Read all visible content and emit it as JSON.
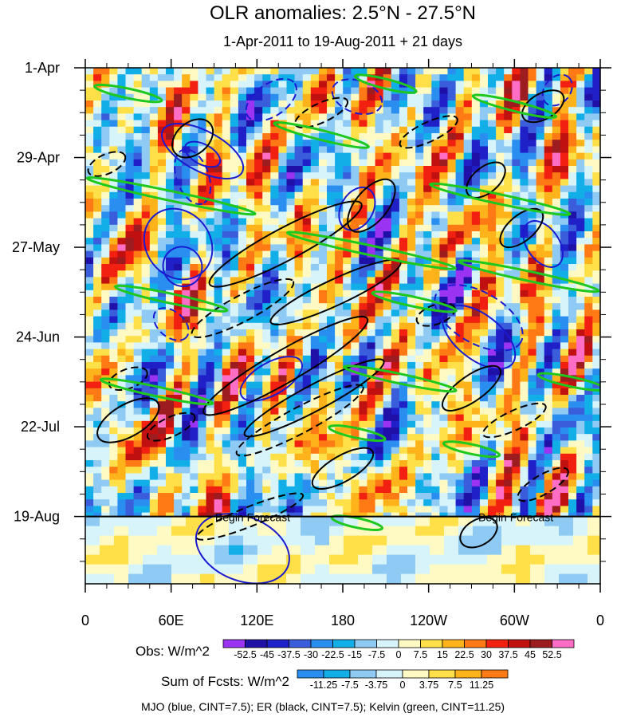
{
  "chart_data": {
    "type": "heatmap",
    "title": "OLR anomalies: 2.5°N - 27.5°N",
    "subtitle": "1-Apr-2011 to 19-Aug-2011 + 21 days",
    "x_ticks": [
      "0",
      "60E",
      "120E",
      "180",
      "120W",
      "60W",
      "0"
    ],
    "x_tick_values": [
      0,
      60,
      120,
      180,
      240,
      300,
      360
    ],
    "xlim": [
      0,
      360
    ],
    "y_ticks": [
      "1-Apr",
      "29-Apr",
      "27-May",
      "24-Jun",
      "22-Jul",
      "19-Aug"
    ],
    "y_tick_days": [
      0,
      28,
      56,
      84,
      112,
      140
    ],
    "ylim_days": [
      0,
      161
    ],
    "forecast_start_day": 140,
    "forecast_label": "Begin Forecast",
    "obs_colorbar": {
      "label": "Obs: W/m^2",
      "levels": [
        "-52.5",
        "-45",
        "-37.5",
        "-30",
        "-22.5",
        "-15",
        "-7.5",
        "0",
        "7.5",
        "15",
        "22.5",
        "30",
        "37.5",
        "45",
        "52.5"
      ],
      "colors": [
        "#9a34f2",
        "#1f10a8",
        "#2020c8",
        "#3a5ddc",
        "#2a8ef0",
        "#12aee8",
        "#8ecaf4",
        "#d8f4fb",
        "#fffac4",
        "#ffe048",
        "#ffb31a",
        "#ff7a14",
        "#f22010",
        "#c01010",
        "#9c1c20",
        "#ff6ec4"
      ]
    },
    "fcst_colorbar": {
      "label": "Sum of Fcsts: W/m^2",
      "levels": [
        "-11.25",
        "-7.5",
        "-3.75",
        "0",
        "3.75",
        "7.5",
        "11.25"
      ],
      "colors": [
        "#2a8ef0",
        "#12aee8",
        "#8ecaf4",
        "#d8f4fb",
        "#fffac4",
        "#ffe048",
        "#ffb31a",
        "#ff7a14"
      ]
    },
    "footnote": "MJO (blue, CINT=7.5); ER (black, CINT=7.5); Kelvin (green, CINT=11.25)",
    "contour_colors": {
      "mjo": "#1a1ad0",
      "er": "#000000",
      "kelvin": "#1ec81e"
    },
    "contours": {
      "mjo": [
        {
          "lon": 82,
          "day": 26,
          "rlon": 14,
          "rday": 14,
          "angle": -62,
          "dashed": false
        },
        {
          "lon": 82,
          "day": 27,
          "rlon": 7,
          "rday": 6,
          "angle": -62,
          "dashed": false
        },
        {
          "lon": 65,
          "day": 55,
          "rlon": 26,
          "rday": 10,
          "angle": 52,
          "dashed": false
        },
        {
          "lon": 68,
          "day": 62,
          "rlon": 14,
          "rday": 6,
          "angle": 56,
          "dashed": false
        },
        {
          "lon": 190,
          "day": 44,
          "rlon": 16,
          "rday": 5,
          "angle": -60,
          "dashed": false
        },
        {
          "lon": 275,
          "day": 84,
          "rlon": 30,
          "rday": 7,
          "angle": 38,
          "dashed": false
        },
        {
          "lon": 320,
          "day": 55,
          "rlon": 18,
          "rday": 5,
          "angle": 55,
          "dashed": false
        },
        {
          "lon": 130,
          "day": 97,
          "rlon": 24,
          "rday": 5,
          "angle": -30,
          "dashed": false
        },
        {
          "lon": 110,
          "day": 150,
          "rlon": 34,
          "rday": 10,
          "angle": 22,
          "dashed": false
        },
        {
          "lon": 75,
          "day": 34,
          "rlon": 20,
          "rday": 5,
          "angle": 70,
          "dashed": true
        },
        {
          "lon": 130,
          "day": 10,
          "rlon": 20,
          "rday": 5,
          "angle": -35,
          "dashed": true
        },
        {
          "lon": 275,
          "day": 78,
          "rlon": 34,
          "rday": 8,
          "angle": 30,
          "dashed": true
        },
        {
          "lon": 60,
          "day": 80,
          "rlon": 14,
          "rday": 4,
          "angle": 40,
          "dashed": true
        },
        {
          "lon": 190,
          "day": 9,
          "rlon": 18,
          "rday": 5,
          "angle": 20,
          "dashed": true
        },
        {
          "lon": 330,
          "day": 7,
          "rlon": 12,
          "rday": 4,
          "angle": -50,
          "dashed": true
        }
      ],
      "er": [
        {
          "lon": 75,
          "day": 22,
          "rlon": 16,
          "rday": 5,
          "angle": -40,
          "dashed": false
        },
        {
          "lon": 140,
          "day": 55,
          "rlon": 60,
          "rday": 5,
          "angle": -28,
          "dashed": false
        },
        {
          "lon": 175,
          "day": 70,
          "rlon": 50,
          "rday": 4,
          "angle": -25,
          "dashed": false
        },
        {
          "lon": 140,
          "day": 93,
          "rlon": 66,
          "rday": 5,
          "angle": -30,
          "dashed": false
        },
        {
          "lon": 160,
          "day": 103,
          "rlon": 55,
          "rday": 4,
          "angle": -28,
          "dashed": false
        },
        {
          "lon": 200,
          "day": 43,
          "rlon": 22,
          "rday": 5,
          "angle": -50,
          "dashed": false
        },
        {
          "lon": 270,
          "day": 100,
          "rlon": 24,
          "rday": 4,
          "angle": -35,
          "dashed": false
        },
        {
          "lon": 280,
          "day": 35,
          "rlon": 16,
          "rday": 4,
          "angle": -40,
          "dashed": false
        },
        {
          "lon": 320,
          "day": 12,
          "rlon": 16,
          "rday": 4,
          "angle": -30,
          "dashed": false
        },
        {
          "lon": 305,
          "day": 50,
          "rlon": 18,
          "rday": 4,
          "angle": -40,
          "dashed": false
        },
        {
          "lon": 30,
          "day": 110,
          "rlon": 24,
          "rday": 5,
          "angle": -30,
          "dashed": false
        },
        {
          "lon": 180,
          "day": 125,
          "rlon": 24,
          "rday": 4,
          "angle": -30,
          "dashed": false
        },
        {
          "lon": 275,
          "day": 145,
          "rlon": 14,
          "rday": 4,
          "angle": -30,
          "dashed": false
        },
        {
          "lon": 15,
          "day": 30,
          "rlon": 14,
          "rday": 3,
          "angle": -25,
          "dashed": true
        },
        {
          "lon": 110,
          "day": 75,
          "rlon": 40,
          "rday": 4,
          "angle": -28,
          "dashed": true
        },
        {
          "lon": 150,
          "day": 110,
          "rlon": 50,
          "rday": 4,
          "angle": -28,
          "dashed": true
        },
        {
          "lon": 240,
          "day": 20,
          "rlon": 22,
          "rday": 3,
          "angle": -25,
          "dashed": true
        },
        {
          "lon": 300,
          "day": 110,
          "rlon": 24,
          "rday": 3,
          "angle": -25,
          "dashed": true
        },
        {
          "lon": 60,
          "day": 112,
          "rlon": 18,
          "rday": 3,
          "angle": -25,
          "dashed": true
        },
        {
          "lon": 115,
          "day": 140,
          "rlon": 40,
          "rday": 3,
          "angle": -22,
          "dashed": true
        },
        {
          "lon": 320,
          "day": 130,
          "rlon": 20,
          "rday": 3,
          "angle": -30,
          "dashed": true
        },
        {
          "lon": 30,
          "day": 97,
          "rlon": 14,
          "rday": 3,
          "angle": -20,
          "dashed": true
        },
        {
          "lon": 245,
          "day": 77,
          "rlon": 14,
          "rday": 3,
          "angle": -20,
          "dashed": true
        },
        {
          "lon": 165,
          "day": 14,
          "rlon": 20,
          "rday": 3,
          "angle": -25,
          "dashed": true
        }
      ],
      "kelvin": [
        {
          "lon": 30,
          "day": 8,
          "rlon": 24,
          "rday": 1.5,
          "angle": 12,
          "dashed": false
        },
        {
          "lon": 165,
          "day": 21,
          "rlon": 34,
          "rday": 1.5,
          "angle": 14,
          "dashed": false
        },
        {
          "lon": 210,
          "day": 5,
          "rlon": 22,
          "rday": 1.5,
          "angle": 14,
          "dashed": false
        },
        {
          "lon": 300,
          "day": 12,
          "rlon": 30,
          "rday": 1.5,
          "angle": 14,
          "dashed": false
        },
        {
          "lon": 60,
          "day": 40,
          "rlon": 60,
          "rday": 1.5,
          "angle": 12,
          "dashed": false
        },
        {
          "lon": 290,
          "day": 41,
          "rlon": 50,
          "rday": 1.5,
          "angle": 12,
          "dashed": false
        },
        {
          "lon": 200,
          "day": 57,
          "rlon": 60,
          "rday": 1.5,
          "angle": 12,
          "dashed": false
        },
        {
          "lon": 310,
          "day": 65,
          "rlon": 50,
          "rday": 1.5,
          "angle": 12,
          "dashed": false
        },
        {
          "lon": 60,
          "day": 72,
          "rlon": 40,
          "rday": 1.5,
          "angle": 12,
          "dashed": false
        },
        {
          "lon": 230,
          "day": 73,
          "rlon": 30,
          "rday": 1.5,
          "angle": 12,
          "dashed": false
        },
        {
          "lon": 220,
          "day": 97,
          "rlon": 40,
          "rday": 1.5,
          "angle": 12,
          "dashed": false
        },
        {
          "lon": 50,
          "day": 101,
          "rlon": 40,
          "rday": 1.5,
          "angle": 12,
          "dashed": false
        },
        {
          "lon": 190,
          "day": 114,
          "rlon": 20,
          "rday": 1.5,
          "angle": 12,
          "dashed": false
        },
        {
          "lon": 340,
          "day": 98,
          "rlon": 24,
          "rday": 1.5,
          "angle": 12,
          "dashed": false
        },
        {
          "lon": 270,
          "day": 119,
          "rlon": 20,
          "rday": 1.5,
          "angle": 12,
          "dashed": false
        },
        {
          "lon": 190,
          "day": 142,
          "rlon": 18,
          "rday": 1.5,
          "angle": 12,
          "dashed": false
        }
      ]
    }
  }
}
